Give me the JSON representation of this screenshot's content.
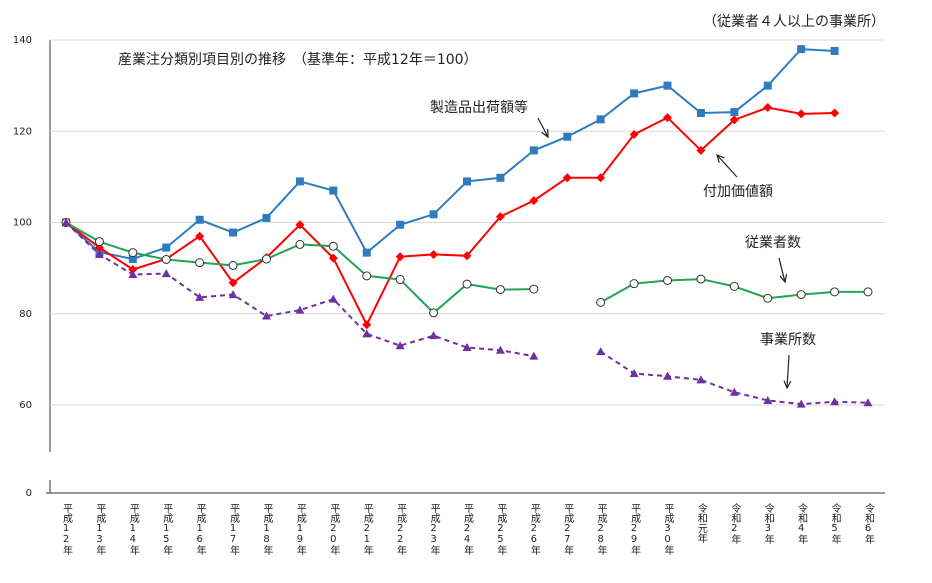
{
  "chart_data": {
    "type": "line",
    "title": "産業注分類別項目別の推移　（基準年：平成12年＝100）",
    "subtitle": "（従業者４人以上の事業所）",
    "categories": [
      "平成12年",
      "平成13年",
      "平成14年",
      "平成15年",
      "平成16年",
      "平成17年",
      "平成18年",
      "平成19年",
      "平成20年",
      "平成21年",
      "平成22年",
      "平成23年",
      "平成24年",
      "平成25年",
      "平成26年",
      "平成27年",
      "平成28年",
      "平成29年",
      "平成30年",
      "令和元年",
      "令和2年",
      "令和3年",
      "令和4年",
      "令和5年",
      "令和6年"
    ],
    "series": [
      {
        "name": "製造品出荷額等",
        "color": "#2e7bbf",
        "marker": "square",
        "dashed": false,
        "values": [
          100,
          93.5,
          92,
          94.5,
          100.6,
          97.8,
          101,
          109,
          107,
          93.4,
          99.5,
          101.8,
          109,
          109.8,
          115.8,
          118.8,
          122.6,
          128.3,
          130,
          124,
          124.2,
          130,
          138,
          137.6,
          null
        ]
      },
      {
        "name": "付加価値額",
        "color": "#ff0000",
        "marker": "diamond",
        "dashed": false,
        "values": [
          100,
          94.5,
          89.7,
          92,
          97,
          86.8,
          92.3,
          99.5,
          92.2,
          77.6,
          92.5,
          93,
          92.7,
          101.3,
          104.8,
          109.8,
          109.8,
          119.3,
          123,
          115.8,
          122.5,
          125.2,
          123.8,
          124,
          null
        ]
      },
      {
        "name": "従業者数",
        "color": "#22a550",
        "marker": "circle",
        "dashed": false,
        "values": [
          100,
          95.8,
          93.4,
          91.9,
          91.2,
          90.6,
          92,
          95.2,
          94.8,
          88.3,
          87.5,
          80.2,
          86.5,
          85.3,
          85.4,
          null,
          82.5,
          86.6,
          87.3,
          87.6,
          86,
          83.4,
          84.2,
          84.8,
          84.8
        ]
      },
      {
        "name": "事業所数",
        "color": "#7030a0",
        "marker": "triangle",
        "dashed": true,
        "values": [
          100,
          93,
          88.6,
          88.8,
          83.6,
          84.2,
          79.5,
          80.8,
          83.2,
          75.6,
          73,
          75.2,
          72.6,
          72,
          70.7,
          null,
          71.7,
          66.9,
          66.3,
          65.5,
          62.8,
          61,
          60.2,
          60.7,
          60.5
        ]
      }
    ],
    "ylim": [
      0,
      140
    ],
    "ybreak": [
      0,
      60
    ],
    "yticks": [
      0,
      60,
      80,
      100,
      120,
      140
    ],
    "grid": true
  }
}
